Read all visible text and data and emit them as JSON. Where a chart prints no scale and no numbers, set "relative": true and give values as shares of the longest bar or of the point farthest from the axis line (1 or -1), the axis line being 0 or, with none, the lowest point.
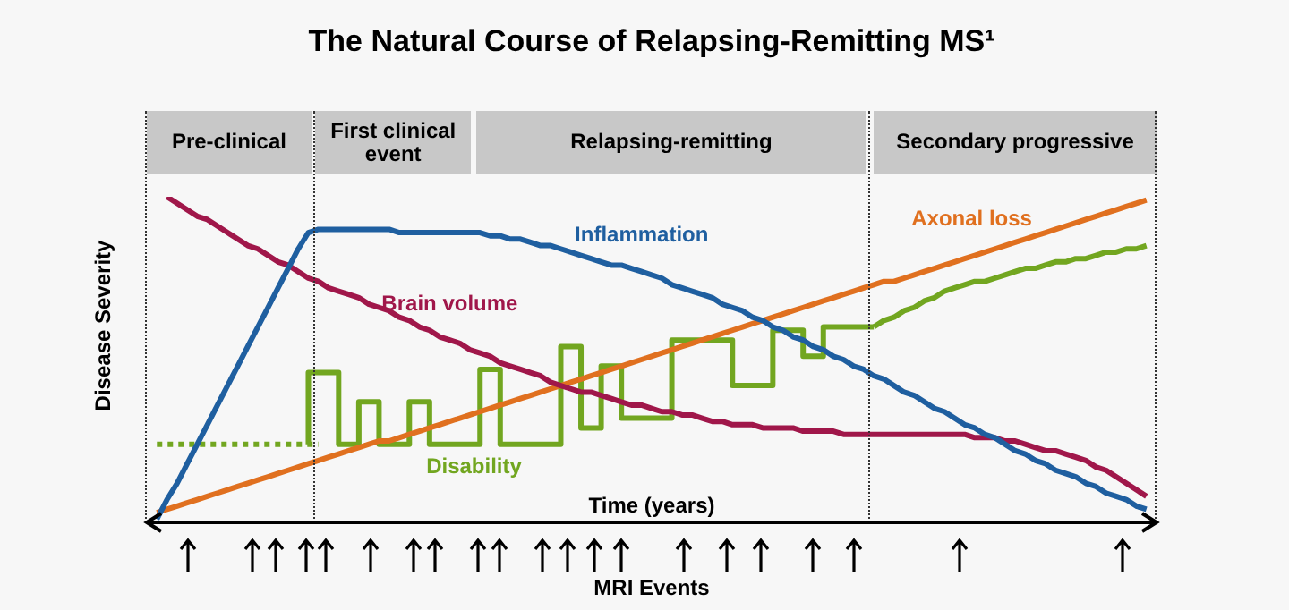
{
  "chart_data": {
    "type": "line",
    "title": "The Natural Course of Relapsing-Remitting MS¹",
    "xlabel": "Time (years)",
    "ylabel": "Disease Severity",
    "relative": true,
    "tick_labels": false,
    "categories": [
      null,
      null,
      null,
      null,
      null,
      null,
      null,
      null,
      null,
      null,
      null,
      null,
      null,
      null,
      null,
      null,
      null,
      null,
      null,
      null,
      null,
      null,
      null,
      null,
      null,
      null,
      null,
      null,
      null,
      null,
      null,
      null,
      null,
      null,
      null,
      null,
      null,
      null,
      null,
      null,
      null,
      null,
      null,
      null,
      null,
      null,
      null,
      null,
      null,
      null,
      null,
      null,
      null,
      null,
      null,
      null,
      null,
      null,
      null,
      null,
      null,
      null,
      null,
      null,
      null,
      null,
      null,
      null,
      null,
      null,
      null,
      null,
      null,
      null,
      null,
      null,
      null,
      null,
      null,
      null,
      null,
      null,
      null,
      null,
      null,
      null,
      null,
      null,
      null,
      null,
      null,
      null,
      null,
      null,
      null,
      null,
      null,
      null,
      null,
      null,
      null
    ],
    "series": [
      {
        "name": "Inflammation",
        "color": "#1f5fa0",
        "values": [
          null,
          0.01,
          0.07,
          0.12,
          0.18,
          0.24,
          0.3,
          0.36,
          0.42,
          0.48,
          0.54,
          0.6,
          0.66,
          0.72,
          0.78,
          0.84,
          0.89,
          0.9,
          0.9,
          0.9,
          0.9,
          0.9,
          0.9,
          0.9,
          0.9,
          0.89,
          0.89,
          0.89,
          0.89,
          0.89,
          0.89,
          0.89,
          0.89,
          0.89,
          0.88,
          0.88,
          0.87,
          0.87,
          0.86,
          0.85,
          0.85,
          0.84,
          0.83,
          0.82,
          0.81,
          0.8,
          0.79,
          0.79,
          0.78,
          0.77,
          0.76,
          0.75,
          0.73,
          0.72,
          0.71,
          0.7,
          0.69,
          0.67,
          0.66,
          0.65,
          0.63,
          0.62,
          0.6,
          0.59,
          0.57,
          0.56,
          0.54,
          0.53,
          0.51,
          0.5,
          0.48,
          0.47,
          0.45,
          0.44,
          0.42,
          0.4,
          0.39,
          0.37,
          0.35,
          0.34,
          0.32,
          0.3,
          0.29,
          0.27,
          0.26,
          0.24,
          0.22,
          0.21,
          0.19,
          0.18,
          0.16,
          0.15,
          0.14,
          0.12,
          0.11,
          0.09,
          0.08,
          0.07,
          0.05,
          0.04,
          null
        ]
      },
      {
        "name": "Brain volume",
        "color": "#a0174a",
        "values": [
          null,
          null,
          1.0,
          0.98,
          0.96,
          0.94,
          0.93,
          0.91,
          0.89,
          0.87,
          0.85,
          0.84,
          0.82,
          0.8,
          0.79,
          0.77,
          0.75,
          0.74,
          0.72,
          0.71,
          0.7,
          0.69,
          0.67,
          0.66,
          0.65,
          0.63,
          0.62,
          0.6,
          0.59,
          0.57,
          0.56,
          0.55,
          0.53,
          0.52,
          0.51,
          0.49,
          0.48,
          0.47,
          0.46,
          0.45,
          0.43,
          0.42,
          0.41,
          0.4,
          0.4,
          0.39,
          0.38,
          0.37,
          0.36,
          0.36,
          0.35,
          0.34,
          0.34,
          0.33,
          0.33,
          0.32,
          0.31,
          0.31,
          0.3,
          0.3,
          0.3,
          0.29,
          0.29,
          0.29,
          0.29,
          0.28,
          0.28,
          0.28,
          0.28,
          0.27,
          0.27,
          0.27,
          0.27,
          0.27,
          0.27,
          0.27,
          0.27,
          0.27,
          0.27,
          0.27,
          0.27,
          0.27,
          0.26,
          0.26,
          0.26,
          0.25,
          0.25,
          0.24,
          0.23,
          0.22,
          0.22,
          0.21,
          0.2,
          0.19,
          0.17,
          0.16,
          0.14,
          0.12,
          0.1,
          0.08,
          null
        ]
      },
      {
        "name": "Axonal loss",
        "color": "#e0701f",
        "values": [
          null,
          0.03,
          0.04,
          0.05,
          0.06,
          0.07,
          0.08,
          0.09,
          0.1,
          0.11,
          0.12,
          0.13,
          0.14,
          0.15,
          0.16,
          0.17,
          0.18,
          0.19,
          0.2,
          0.21,
          0.22,
          0.23,
          0.24,
          0.25,
          0.25,
          0.26,
          0.27,
          0.28,
          0.29,
          0.3,
          0.31,
          0.32,
          0.33,
          0.34,
          0.35,
          0.36,
          0.37,
          0.38,
          0.39,
          0.4,
          0.41,
          0.42,
          0.43,
          0.44,
          0.45,
          0.46,
          0.47,
          0.48,
          0.49,
          0.5,
          0.51,
          0.52,
          0.53,
          0.54,
          0.55,
          0.56,
          0.57,
          0.58,
          0.59,
          0.6,
          0.61,
          0.62,
          0.63,
          0.64,
          0.65,
          0.66,
          0.67,
          0.68,
          0.69,
          0.7,
          0.71,
          0.72,
          0.73,
          0.74,
          0.74,
          0.75,
          0.76,
          0.77,
          0.78,
          0.79,
          0.8,
          0.81,
          0.82,
          0.83,
          0.84,
          0.85,
          0.86,
          0.87,
          0.88,
          0.89,
          0.9,
          0.91,
          0.92,
          0.93,
          0.94,
          0.95,
          0.96,
          0.97,
          0.98,
          0.99,
          null
        ]
      },
      {
        "color": "#72a620",
        "line_style": "dotted",
        "values": [
          null,
          0.24,
          0.24,
          0.24,
          0.24,
          0.24,
          0.24,
          0.24,
          0.24,
          0.24,
          0.24,
          0.24,
          0.24,
          0.24,
          0.24,
          0.24,
          0.24,
          0.24,
          null,
          null,
          null,
          null,
          null,
          null,
          null,
          null,
          null,
          null,
          null,
          null,
          null,
          null,
          null,
          null,
          null,
          null,
          null,
          null,
          null,
          null,
          null,
          null,
          null,
          null,
          null,
          null,
          null,
          null,
          null,
          null,
          null,
          null,
          null,
          null,
          null,
          null,
          null,
          null,
          null,
          null,
          null,
          null,
          null,
          null,
          null,
          null,
          null,
          null,
          null,
          null,
          null,
          null,
          null,
          null,
          null,
          null,
          null,
          null,
          null,
          null,
          null,
          null,
          null,
          null,
          null,
          null,
          null,
          null,
          null,
          null,
          null,
          null,
          null,
          null,
          null,
          null,
          null,
          null,
          null,
          null,
          null
        ]
      },
      {
        "name": "Disability",
        "type": "step",
        "color": "#72a620",
        "values": [
          null,
          null,
          null,
          null,
          null,
          null,
          null,
          null,
          null,
          null,
          null,
          null,
          null,
          null,
          null,
          null,
          0.24,
          0.46,
          0.46,
          0.46,
          0.24,
          0.24,
          0.37,
          0.37,
          0.24,
          0.24,
          0.24,
          0.37,
          0.37,
          0.24,
          0.24,
          0.24,
          0.24,
          0.24,
          0.47,
          0.47,
          0.24,
          0.24,
          0.24,
          0.24,
          0.24,
          0.24,
          0.54,
          0.54,
          0.29,
          0.29,
          0.48,
          0.48,
          0.32,
          0.32,
          0.32,
          0.32,
          0.32,
          0.56,
          0.56,
          0.56,
          0.56,
          0.56,
          0.56,
          0.42,
          0.42,
          0.42,
          0.42,
          0.59,
          0.59,
          0.59,
          0.51,
          0.51,
          0.6,
          0.6,
          0.6,
          0.6,
          0.6,
          null,
          null,
          null,
          null,
          null,
          null,
          null,
          null,
          null,
          null,
          null,
          null,
          null,
          null,
          null,
          null,
          null,
          null,
          null,
          null,
          null,
          null,
          null,
          null,
          null,
          null,
          null,
          null
        ]
      },
      {
        "color": "#72a620",
        "values": [
          null,
          null,
          null,
          null,
          null,
          null,
          null,
          null,
          null,
          null,
          null,
          null,
          null,
          null,
          null,
          null,
          null,
          null,
          null,
          null,
          null,
          null,
          null,
          null,
          null,
          null,
          null,
          null,
          null,
          null,
          null,
          null,
          null,
          null,
          null,
          null,
          null,
          null,
          null,
          null,
          null,
          null,
          null,
          null,
          null,
          null,
          null,
          null,
          null,
          null,
          null,
          null,
          null,
          null,
          null,
          null,
          null,
          null,
          null,
          null,
          null,
          null,
          null,
          null,
          null,
          null,
          null,
          null,
          null,
          null,
          null,
          null,
          0.6,
          0.62,
          0.63,
          0.65,
          0.66,
          0.68,
          0.69,
          0.71,
          0.72,
          0.73,
          0.74,
          0.74,
          0.75,
          0.76,
          0.77,
          0.78,
          0.78,
          0.79,
          0.8,
          0.8,
          0.81,
          0.81,
          0.82,
          0.83,
          0.83,
          0.84,
          0.84,
          0.85,
          null
        ]
      }
    ],
    "annotations": [
      "Pre-clinical",
      "First clinical event",
      "Relapsing-remitting",
      "Secondary progressive",
      "MRI Events"
    ]
  }
}
